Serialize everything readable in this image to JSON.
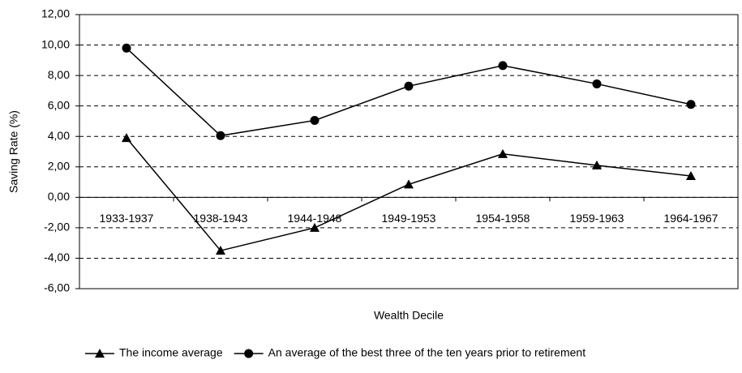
{
  "chart_data": {
    "type": "line",
    "x_label": "Wealth Decile",
    "y_label": "Saving Rate (%)",
    "categories": [
      "1933-1937",
      "1938-1943",
      "1944-1948",
      "1949-1953",
      "1954-1958",
      "1959-1963",
      "1964-1967"
    ],
    "series": [
      {
        "name": "The income average",
        "color": "#000000",
        "marker": "triangle",
        "values": [
          3.9,
          -3.5,
          -2.0,
          0.85,
          2.85,
          2.1,
          1.4
        ]
      },
      {
        "name": "An average of the best three of the ten years prior to retirement",
        "color": "#000000",
        "marker": "circle",
        "values": [
          9.8,
          4.05,
          5.05,
          7.3,
          8.65,
          7.45,
          6.1
        ]
      }
    ],
    "ylim": [
      -6,
      12
    ],
    "yticks": [
      {
        "value": -6,
        "label": "-6,00"
      },
      {
        "value": -4,
        "label": "-4,00"
      },
      {
        "value": -2,
        "label": "-2,00"
      },
      {
        "value": 0,
        "label": "0,00"
      },
      {
        "value": 2,
        "label": "2,00"
      },
      {
        "value": 4,
        "label": "4,00"
      },
      {
        "value": 6,
        "label": "6,00"
      },
      {
        "value": 8,
        "label": "8,00"
      },
      {
        "value": 10,
        "label": "10,00"
      },
      {
        "value": 12,
        "label": "12,00"
      }
    ],
    "grid": true
  }
}
